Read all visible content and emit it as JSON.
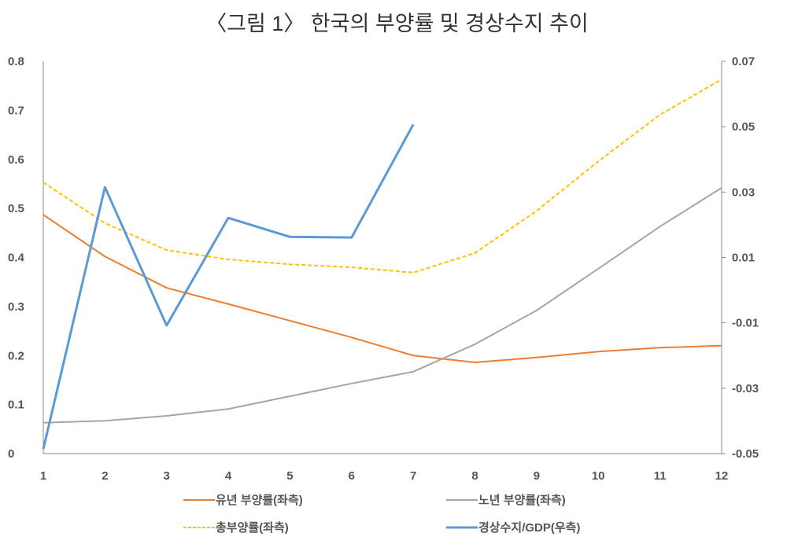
{
  "chart_data": {
    "type": "line",
    "title": "〈그림 1〉 한국의 부양률 및 경상수지 추이",
    "x": [
      1,
      2,
      3,
      4,
      5,
      6,
      7,
      8,
      9,
      10,
      11,
      12
    ],
    "y_left": {
      "ylim": [
        0,
        0.8
      ],
      "ticks": [
        "0",
        "0.1",
        "0.2",
        "0.3",
        "0.4",
        "0.5",
        "0.6",
        "0.7",
        "0.8"
      ]
    },
    "y_right": {
      "ylim": [
        -0.05,
        0.07
      ],
      "ticks": [
        "-0.05",
        "-0.03",
        "-0.01",
        "0.01",
        "0.03",
        "0.05",
        "0.07"
      ]
    },
    "x_ticks": [
      "1",
      "2",
      "3",
      "4",
      "5",
      "6",
      "7",
      "8",
      "9",
      "10",
      "11",
      "12"
    ],
    "grid": false,
    "legend_placement": "bottom",
    "series": [
      {
        "name": "유년 부양률(좌측)",
        "axis": "left",
        "color": "#ED7D31",
        "style": "solid",
        "values": [
          0.487,
          0.402,
          0.338,
          0.305,
          0.271,
          0.237,
          0.2,
          0.186,
          0.196,
          0.208,
          0.216,
          0.22
        ]
      },
      {
        "name": "노년 부양률(좌측)",
        "axis": "left",
        "color": "#A5A5A5",
        "style": "solid",
        "values": [
          0.063,
          0.067,
          0.077,
          0.091,
          0.117,
          0.143,
          0.167,
          0.223,
          0.292,
          0.377,
          0.463,
          0.542
        ]
      },
      {
        "name": "총부양률(좌측)",
        "axis": "left",
        "color": "#FFC000",
        "style": "dashed",
        "values": [
          0.553,
          0.47,
          0.415,
          0.396,
          0.386,
          0.38,
          0.369,
          0.409,
          0.495,
          0.596,
          0.691,
          0.763
        ]
      },
      {
        "name": "경상수지/GDP(우측)",
        "axis": "right",
        "color": "#5B9BD5",
        "style": "solid",
        "values": [
          -0.0486,
          0.0315,
          -0.0108,
          0.0221,
          0.0163,
          0.0161,
          0.0507,
          null,
          null,
          null,
          null,
          null
        ]
      }
    ]
  }
}
